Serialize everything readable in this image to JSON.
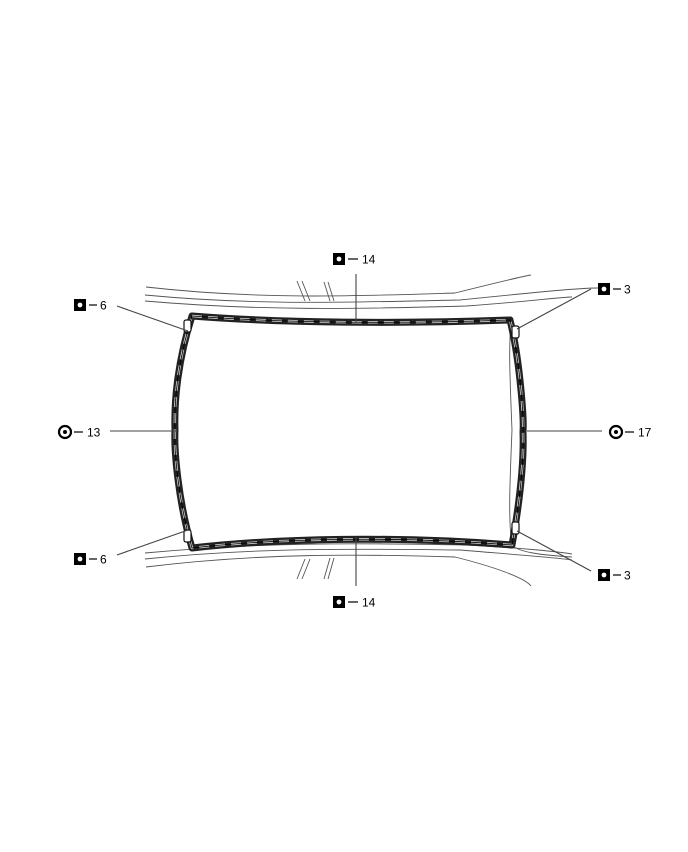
{
  "diagram": {
    "callouts": [
      {
        "id": "top",
        "symbol": "square",
        "label": "14"
      },
      {
        "id": "bottom",
        "symbol": "square",
        "label": "14"
      },
      {
        "id": "top-left",
        "symbol": "square",
        "label": "6"
      },
      {
        "id": "bottom-left",
        "symbol": "square",
        "label": "6"
      },
      {
        "id": "top-right",
        "symbol": "square",
        "label": "3"
      },
      {
        "id": "bottom-right",
        "symbol": "square",
        "label": "3"
      },
      {
        "id": "left",
        "symbol": "circle",
        "label": "13"
      },
      {
        "id": "right",
        "symbol": "circle",
        "label": "17"
      }
    ]
  }
}
